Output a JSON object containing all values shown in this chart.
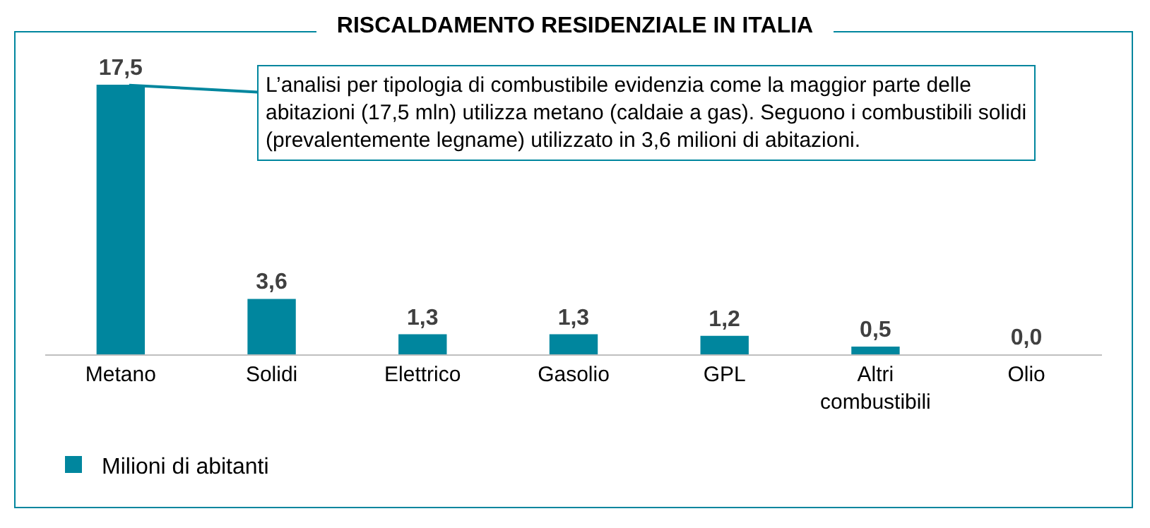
{
  "chart_data": {
    "type": "bar",
    "title": "RISCALDAMENTO RESIDENZIALE IN ITALIA",
    "categories": [
      "Metano",
      "Solidi",
      "Elettrico",
      "Gasolio",
      "GPL",
      "Altri combustibili",
      "Olio"
    ],
    "series": [
      {
        "name": "Milioni di abitanti",
        "color": "#00869e",
        "values": [
          17.5,
          3.6,
          1.3,
          1.3,
          1.2,
          0.5,
          0.0
        ],
        "value_labels": [
          "17,5",
          "3,6",
          "1,3",
          "1,3",
          "1,2",
          "0,5",
          "0,0"
        ]
      }
    ],
    "annotations": [
      {
        "text": "L’analisi per tipologia di combustibile evidenzia come la maggior parte delle abitazioni (17,5 mln) utilizza metano (caldaie a gas). Seguono i combustibili solidi (prevalentemente legname) utilizzato in 3,6 milioni di abitazioni.",
        "x": "Metano",
        "y": 17.5
      }
    ],
    "legend": "bottom left"
  }
}
